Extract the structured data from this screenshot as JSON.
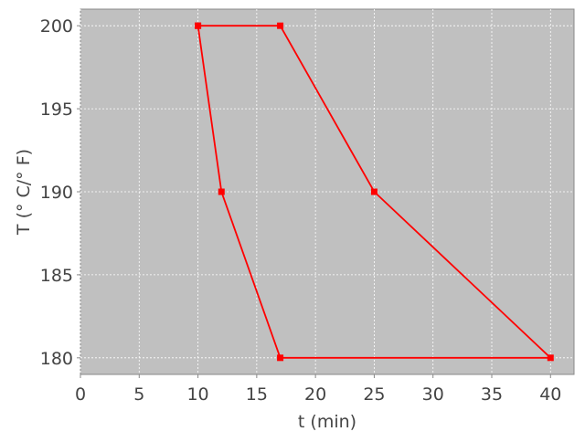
{
  "chart_data": {
    "type": "line",
    "title": "",
    "xlabel": "t (min)",
    "ylabel": "T (° C/° F)",
    "xlim": [
      0,
      42
    ],
    "ylim": [
      179,
      201
    ],
    "xticks": [
      0,
      5,
      10,
      15,
      20,
      25,
      30,
      35,
      40
    ],
    "yticks": [
      180,
      185,
      190,
      195,
      200
    ],
    "grid": true,
    "series": [
      {
        "x": [
          10,
          17,
          25,
          40,
          17,
          12,
          10
        ],
        "y": [
          200,
          200,
          190,
          180,
          180,
          190,
          200
        ],
        "color": "#ff0000",
        "marker": "square"
      }
    ],
    "background_color": "#c0c0c0"
  }
}
